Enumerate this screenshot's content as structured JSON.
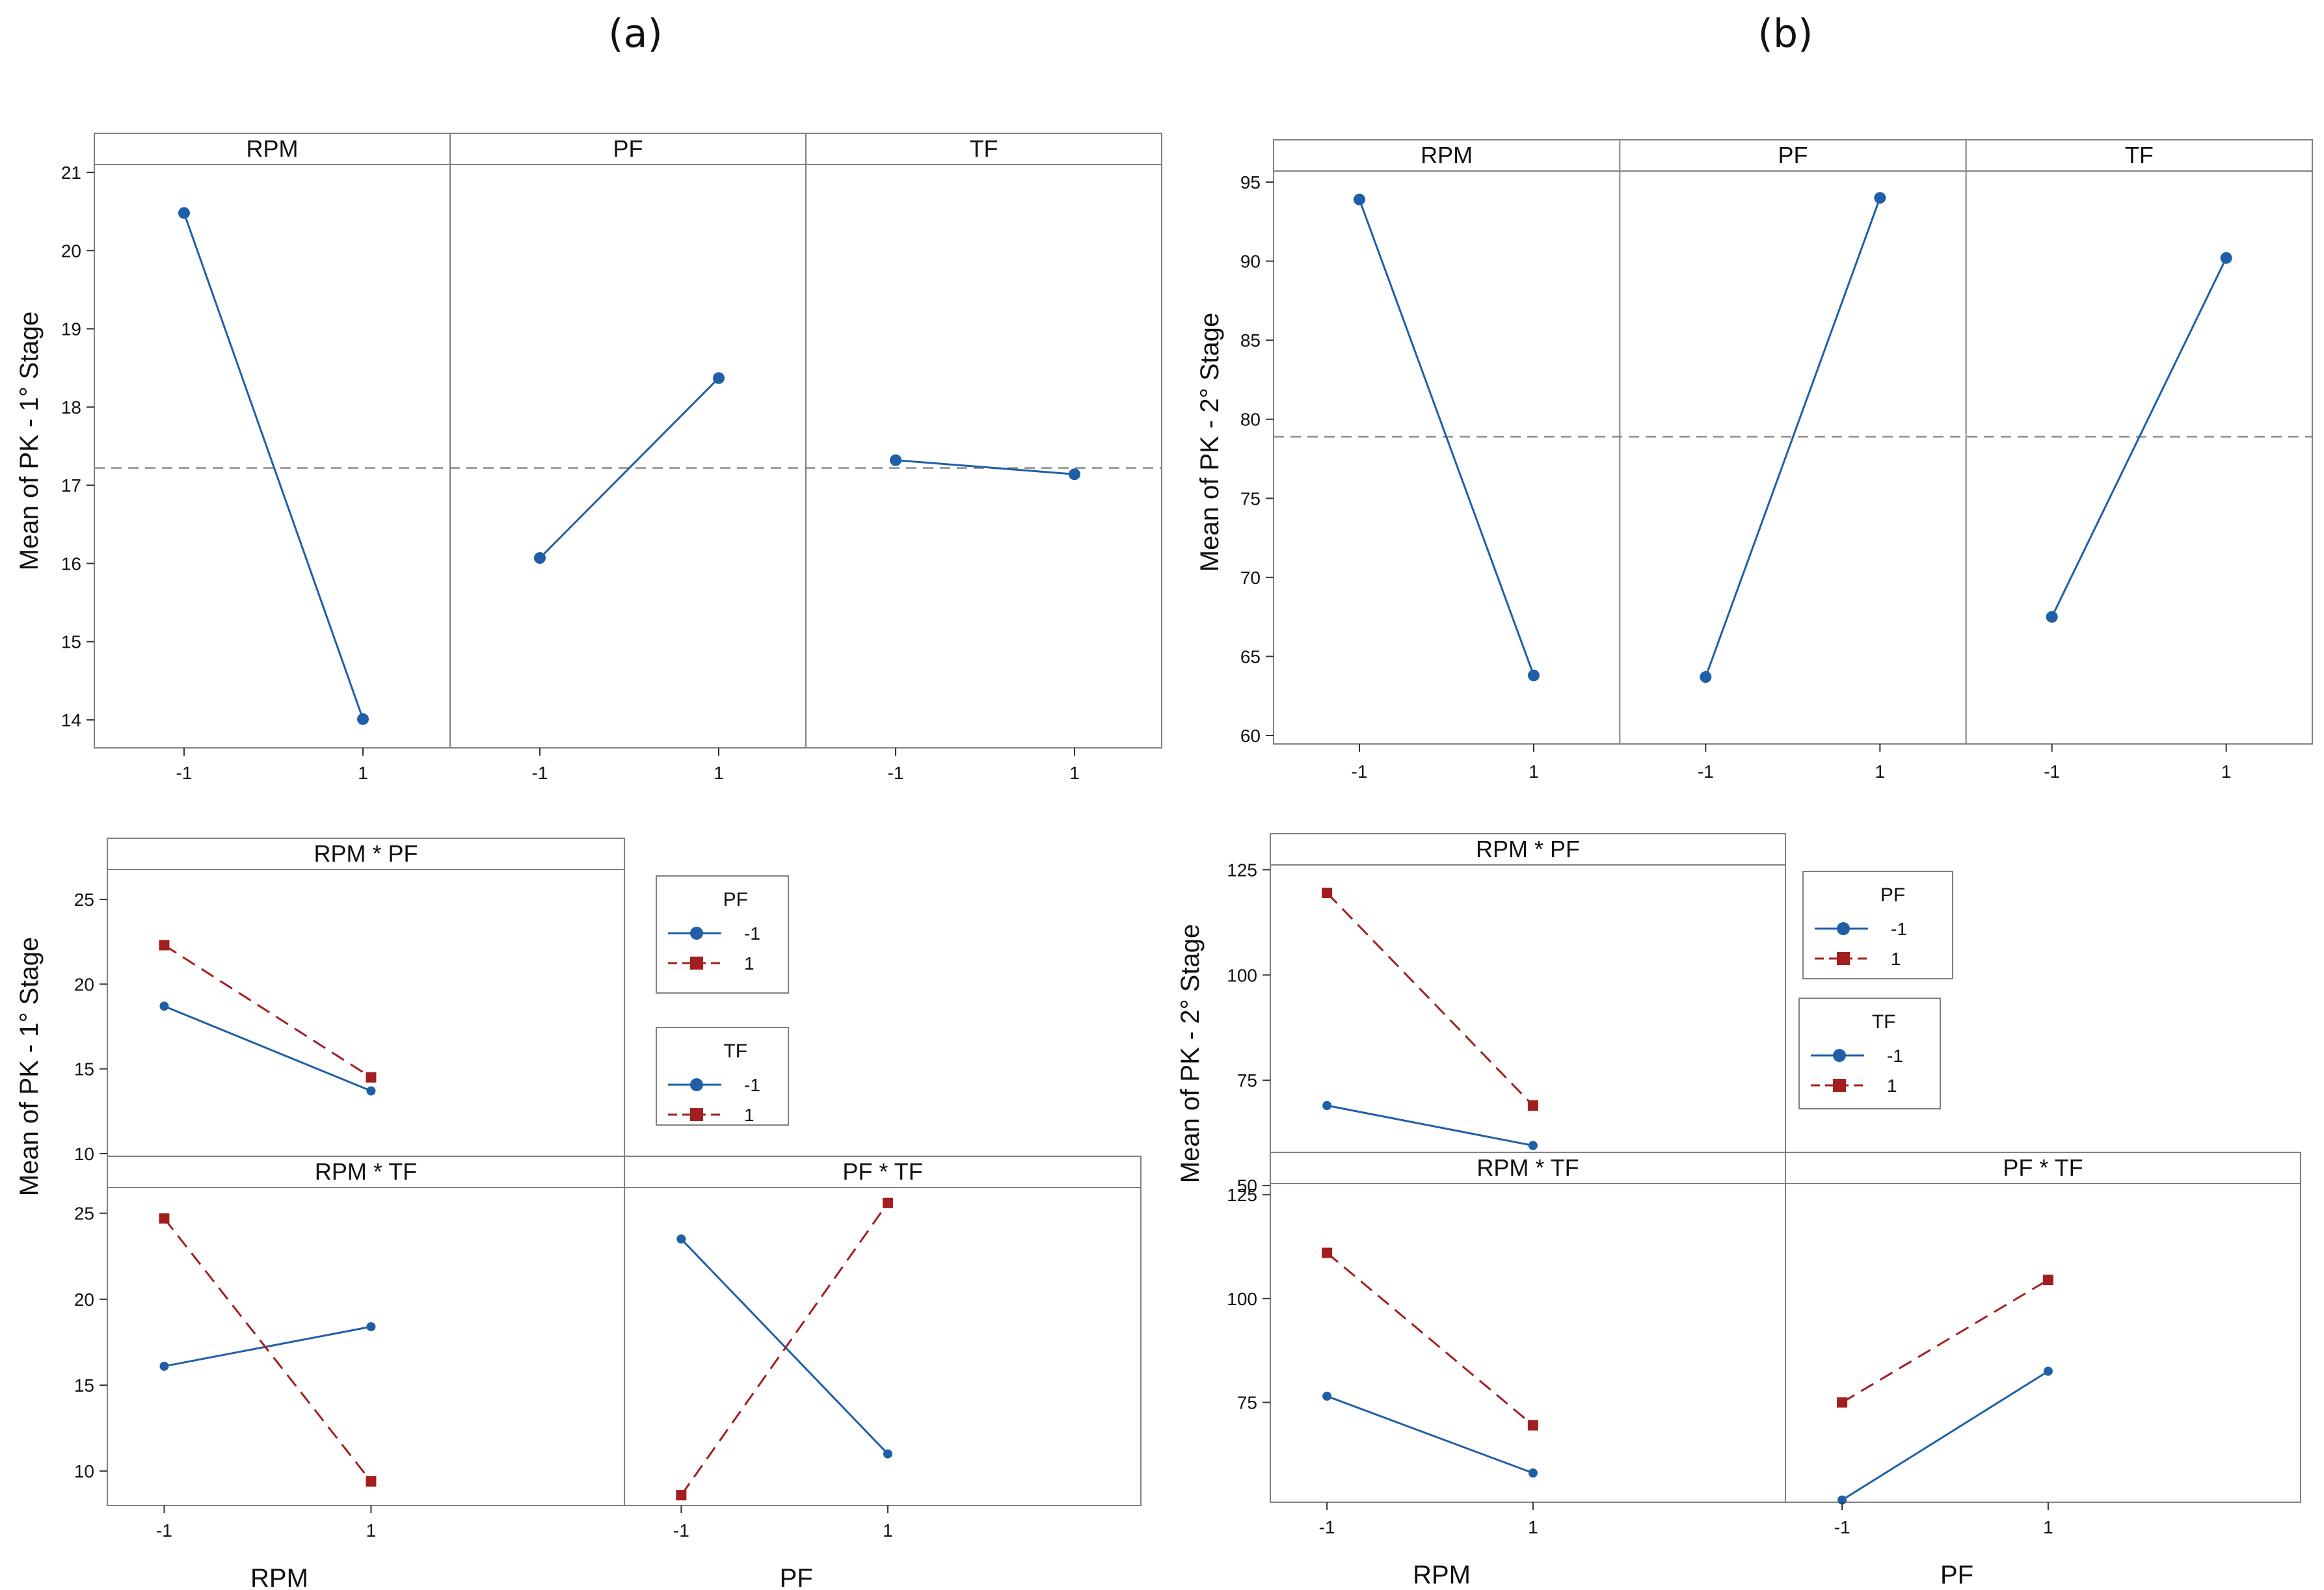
{
  "figure": {
    "label_a": "(a)",
    "label_b": "(b)"
  },
  "colors": {
    "blue": "#1f5fa8",
    "red": "#a31f1f",
    "frame": "#808080",
    "grid_ref": "#8c8c8c"
  },
  "chart_data": [
    {
      "id": "a-main",
      "type": "line",
      "ylabel": "Mean of PK - 1° Stage",
      "ylim": [
        13.6,
        21.4
      ],
      "yticks": [
        14,
        15,
        16,
        17,
        18,
        19,
        20,
        21
      ],
      "reference_mean": 17.22,
      "panels": [
        {
          "title": "RPM",
          "x": [
            "-1",
            "1"
          ],
          "values": [
            20.48,
            14.01
          ]
        },
        {
          "title": "PF",
          "x": [
            "-1",
            "1"
          ],
          "values": [
            16.07,
            18.37
          ]
        },
        {
          "title": "TF",
          "x": [
            "-1",
            "1"
          ],
          "values": [
            17.32,
            17.14
          ]
        }
      ]
    },
    {
      "id": "b-main",
      "type": "line",
      "ylabel": "Mean of PK - 2° Stage",
      "ylim": [
        59,
        96
      ],
      "yticks": [
        60,
        65,
        70,
        75,
        80,
        85,
        90,
        95
      ],
      "reference_mean": 78.9,
      "panels": [
        {
          "title": "RPM",
          "x": [
            "-1",
            "1"
          ],
          "values": [
            93.9,
            63.8
          ]
        },
        {
          "title": "PF",
          "x": [
            "-1",
            "1"
          ],
          "values": [
            63.7,
            94.0
          ]
        },
        {
          "title": "TF",
          "x": [
            "-1",
            "1"
          ],
          "values": [
            67.5,
            90.2
          ]
        }
      ]
    },
    {
      "id": "a-interaction",
      "type": "line",
      "ylabel": "Mean of PK - 1° Stage",
      "ylim": [
        8,
        26.5
      ],
      "yticks": [
        10,
        15,
        20,
        25
      ],
      "xlabels": [
        "RPM",
        "PF"
      ],
      "legends": [
        {
          "title": "PF",
          "entries": [
            "-1",
            "1"
          ]
        },
        {
          "title": "TF",
          "entries": [
            "-1",
            "1"
          ]
        }
      ],
      "panels": [
        {
          "title": "RPM * PF",
          "x": [
            "-1",
            "1"
          ],
          "series": [
            {
              "name": "-1",
              "values": [
                18.7,
                13.7
              ]
            },
            {
              "name": "1",
              "values": [
                22.3,
                14.5
              ]
            }
          ]
        },
        {
          "title": "RPM * TF",
          "x": [
            "-1",
            "1"
          ],
          "series": [
            {
              "name": "-1",
              "values": [
                16.1,
                18.4
              ]
            },
            {
              "name": "1",
              "values": [
                24.7,
                9.4
              ]
            }
          ]
        },
        {
          "title": "PF * TF",
          "x": [
            "-1",
            "1"
          ],
          "series": [
            {
              "name": "-1",
              "values": [
                23.5,
                11.0
              ]
            },
            {
              "name": "1",
              "values": [
                8.6,
                25.6
              ]
            }
          ]
        }
      ]
    },
    {
      "id": "b-interaction",
      "type": "line",
      "ylabel": "Mean of PK - 2° Stage",
      "ylim": [
        48,
        128
      ],
      "yticks": [
        50,
        75,
        100,
        125
      ],
      "xlabels": [
        "RPM",
        "PF"
      ],
      "legends": [
        {
          "title": "PF",
          "entries": [
            "-1",
            "1"
          ]
        },
        {
          "title": "TF",
          "entries": [
            "-1",
            "1"
          ]
        }
      ],
      "panels": [
        {
          "title": "RPM * PF",
          "x": [
            "-1",
            "1"
          ],
          "series": [
            {
              "name": "-1",
              "values": [
                69.0,
                59.5
              ]
            },
            {
              "name": "1",
              "values": [
                119.5,
                69.0
              ]
            }
          ]
        },
        {
          "title": "RPM * TF",
          "x": [
            "-1",
            "1"
          ],
          "series": [
            {
              "name": "-1",
              "values": [
                76.5,
                58.0
              ]
            },
            {
              "name": "1",
              "values": [
                111.0,
                69.5
              ]
            }
          ]
        },
        {
          "title": "PF * TF",
          "x": [
            "-1",
            "1"
          ],
          "series": [
            {
              "name": "-1",
              "values": [
                51.5,
                82.5
              ]
            },
            {
              "name": "1",
              "values": [
                75.0,
                104.5
              ]
            }
          ]
        }
      ]
    }
  ]
}
